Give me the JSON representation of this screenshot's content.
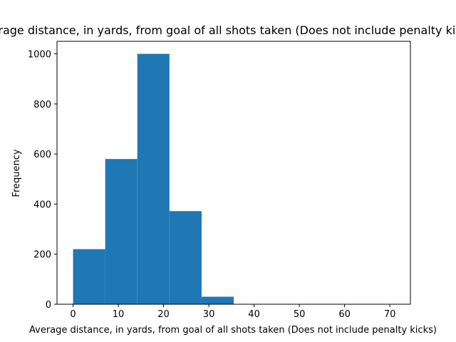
{
  "chart_data": {
    "type": "bar",
    "title": "Average distance, in yards, from goal of all shots taken (Does not include penalty kicks)",
    "xlabel": "Average distance, in yards, from goal of all shots taken (Does not include penalty kicks)",
    "ylabel": "Frequency",
    "bin_edges": [
      0,
      7.1,
      14.2,
      21.3,
      28.4,
      35.5,
      42.6,
      49.7,
      56.8,
      63.9,
      71.0
    ],
    "values": [
      220,
      580,
      1000,
      372,
      30,
      0,
      0,
      0,
      0,
      1
    ],
    "xlim": [
      -3.55,
      74.55
    ],
    "ylim": [
      0,
      1050
    ],
    "x_ticks": [
      0,
      10,
      20,
      30,
      40,
      50,
      60,
      70
    ],
    "y_ticks": [
      0,
      200,
      400,
      600,
      800,
      1000
    ],
    "bar_color": "#1f77b4",
    "grid": false
  }
}
